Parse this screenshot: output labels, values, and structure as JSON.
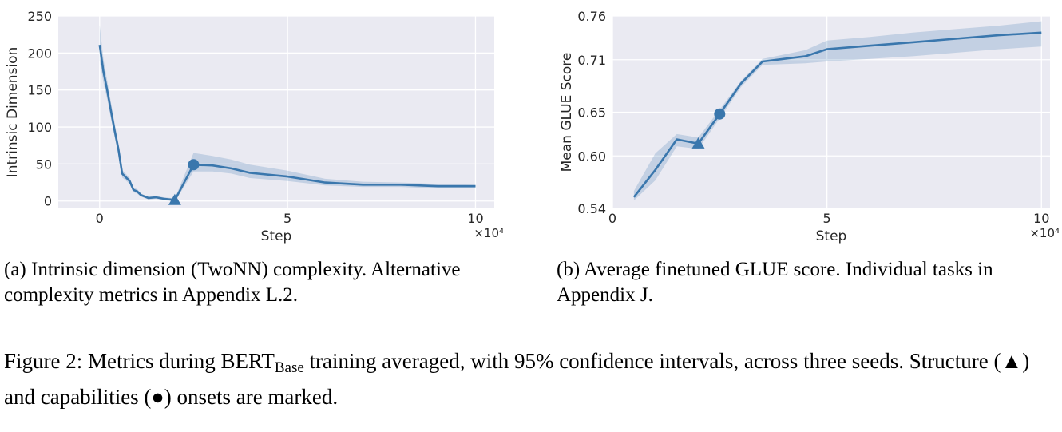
{
  "chart_data": [
    {
      "type": "line",
      "panel": "a",
      "xlabel": "Step",
      "ylabel": "Intrinsic Dimension",
      "xlim": [
        -1.1,
        10.5
      ],
      "ylim": [
        -10,
        250
      ],
      "xticks": [
        0,
        5,
        10
      ],
      "xtick_labels": [
        "0",
        "5",
        "10"
      ],
      "yticks": [
        0,
        50,
        100,
        150,
        200,
        250
      ],
      "ytick_labels": [
        "0",
        "50",
        "100",
        "150",
        "200",
        "250"
      ],
      "x_multiplier": "×10⁴",
      "grid": true,
      "color": "#3a77ad",
      "series": [
        {
          "x": [
            0,
            0.1,
            0.2,
            0.3,
            0.4,
            0.5,
            0.6,
            0.8,
            0.9,
            1.0,
            1.1,
            1.3,
            1.5,
            1.7,
            1.9,
            2.0,
            2.5,
            3.0,
            3.5,
            4.0,
            5.0,
            6.0,
            7.0,
            8.0,
            9.0,
            10.0
          ],
          "y": [
            211,
            175,
            150,
            122,
            95,
            70,
            37,
            27,
            15,
            13,
            8,
            4,
            5,
            3,
            2,
            1,
            49,
            48,
            44,
            38,
            33,
            25,
            22,
            22,
            20,
            20
          ],
          "lower": [
            190,
            160,
            138,
            112,
            86,
            62,
            32,
            23,
            12,
            10,
            6,
            2,
            3,
            1,
            0,
            -1,
            40,
            40,
            37,
            31,
            27,
            21,
            19,
            19,
            17,
            17
          ],
          "upper": [
            238,
            192,
            163,
            133,
            105,
            78,
            42,
            31,
            18,
            16,
            10,
            6,
            7,
            5,
            4,
            3,
            65,
            61,
            56,
            49,
            41,
            30,
            26,
            25,
            23,
            22
          ]
        }
      ],
      "markers": [
        {
          "shape": "triangle",
          "meaning": "structure onset",
          "x": 2.0,
          "y": 1
        },
        {
          "shape": "circle",
          "meaning": "capabilities onset",
          "x": 2.5,
          "y": 49
        }
      ]
    },
    {
      "type": "line",
      "panel": "b",
      "xlabel": "Step",
      "ylabel": "Mean GLUE Score",
      "xlim": [
        0,
        10.2
      ],
      "ylim": [
        0.54,
        0.76
      ],
      "xticks": [
        0,
        5,
        10
      ],
      "xtick_labels": [
        "0",
        "5",
        "10"
      ],
      "yticks": [
        0.54,
        0.6,
        0.65,
        0.71,
        0.76
      ],
      "ytick_labels": [
        "0.54",
        "0.60",
        "0.65",
        "0.71",
        "0.76"
      ],
      "x_multiplier": "×10⁴",
      "grid": true,
      "color": "#3a77ad",
      "series": [
        {
          "x": [
            0.5,
            1.0,
            1.5,
            2.0,
            2.5,
            3.0,
            3.5,
            4.0,
            4.5,
            5.0,
            6.0,
            7.0,
            8.0,
            9.0,
            10.0
          ],
          "y": [
            0.553,
            0.584,
            0.619,
            0.614,
            0.648,
            0.683,
            0.708,
            0.711,
            0.714,
            0.722,
            0.726,
            0.73,
            0.734,
            0.738,
            0.741
          ],
          "lower": [
            0.549,
            0.572,
            0.611,
            0.608,
            0.643,
            0.679,
            0.704,
            0.705,
            0.706,
            0.708,
            0.711,
            0.714,
            0.718,
            0.722,
            0.725
          ],
          "upper": [
            0.56,
            0.603,
            0.625,
            0.621,
            0.653,
            0.686,
            0.711,
            0.716,
            0.721,
            0.732,
            0.736,
            0.741,
            0.745,
            0.749,
            0.754
          ]
        }
      ],
      "markers": [
        {
          "shape": "triangle",
          "meaning": "structure onset",
          "x": 2.0,
          "y": 0.614
        },
        {
          "shape": "circle",
          "meaning": "capabilities onset",
          "x": 2.5,
          "y": 0.648
        }
      ]
    }
  ],
  "captions": {
    "a": "(a) Intrinsic dimension (TwoNN) complexity. Alternative complexity metrics in Appendix L.2.",
    "b": "(b) Average finetuned GLUE score. Individual tasks in Appendix J.",
    "figure_prefix": "Figure 2: Metrics during BERT",
    "figure_sub": "Base",
    "figure_suffix": " training averaged, with 95% confidence intervals, across three seeds. Structure (▲) and capabilities (●) onsets are marked."
  }
}
